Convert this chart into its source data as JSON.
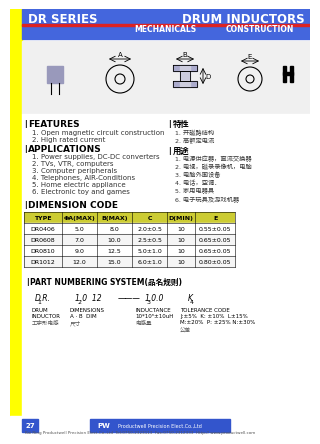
{
  "title_left": "DR SERIES",
  "title_right": "DRUM INDUCTORS",
  "subtitle_left": "MECHANICALS",
  "subtitle_right": "CONSTRUCTION",
  "header_bg": "#4466DD",
  "header_red_line": "#DD2222",
  "yellow_bar": "#FFFF00",
  "features_title": "FEATURES",
  "features": [
    "1. Open magnetic circuit construction",
    "2. High rated current"
  ],
  "applications_title": "APPLICATIONS",
  "applications": [
    "1. Power supplies, DC-DC converters",
    "2. TVs, VTR, computers",
    "3. Computer peripherals",
    "4. Telephones, AIR-Conditions",
    "5. Home electric appliance",
    "6. Electronic toy and games"
  ],
  "chinese_features_title": "特性",
  "chinese_features": [
    "1. 开磁路结构",
    "2. 高额定电流"
  ],
  "chinese_app_title": "用途",
  "chinese_apps": [
    "1. 电源供应器，直流交换器",
    "2. 电视，磁录录像机，电脑",
    "3. 电脑外围设备",
    "4. 电话，空调．",
    "5. 家用电器具",
    "6. 电子玩具及游戏机器"
  ],
  "dim_code_title": "DIMENSION CODE",
  "table_header": [
    "TYPE",
    "ΦA(MAX)",
    "B(MAX)",
    "C",
    "D(MIN)",
    "E"
  ],
  "table_data": [
    [
      "DR0406",
      "5.0",
      "8.0",
      "2.0±0.5",
      "10",
      "0.55±0.05"
    ],
    [
      "DR0608",
      "7.0",
      "10.0",
      "2.5±0.5",
      "10",
      "0.65±0.05"
    ],
    [
      "DR0810",
      "9.0",
      "12.5",
      "5.0±1.0",
      "10",
      "0.65±0.05"
    ],
    [
      "DR1012",
      "12.0",
      "15.0",
      "6.0±1.0",
      "10",
      "0.80±0.05"
    ]
  ],
  "table_header_bg": "#CCCC00",
  "table_row_bg": "#FFFFFF",
  "part_num_title": "PART NUMBERING SYSTEM(品名规则)",
  "pn_rows": [
    {
      "label": "D.R.",
      "sub": "1",
      "desc": "DRUM\nINDUCTOR",
      "desc_cn": "工字形电感"
    },
    {
      "label": "1.0  12",
      "sub": "2",
      "desc": "DIMENSIONS\nA · B  DIM",
      "desc_cn": "尺寸"
    },
    {
      "label": "1.0.0",
      "sub": "3",
      "desc": "INDUCTANCE\n10*10ⁿ·10uH",
      "desc_cn": "电感量"
    },
    {
      "label": "K",
      "sub": "4",
      "desc": "TOLERANCE CODE\nJ:±5%  K: ±10%  L±15%\nM:±20%  P: ±25%  N:±30%",
      "desc_cn": "公差"
    }
  ],
  "footer_text": "Kai Ring Productwell Precision Elect.Co.,Ltd  Tel:0750-2323113  Fax:0750-2312333  Http:// www.productwell.com",
  "page_num": "27",
  "logo_text": "Productwell Precision Elect.Co.,Ltd"
}
